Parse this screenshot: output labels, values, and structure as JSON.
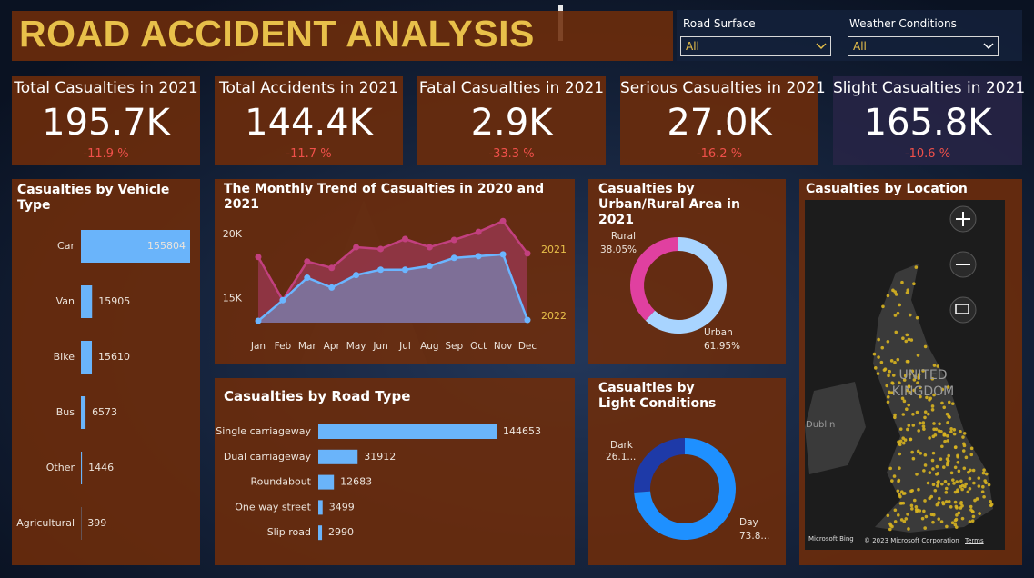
{
  "header": {
    "title": "ROAD ACCIDENT ANALYSIS"
  },
  "filters": [
    {
      "label": "Road Surface",
      "value": "All"
    },
    {
      "label": "Weather Conditions",
      "value": "All"
    }
  ],
  "kpis": [
    {
      "title": "Total Casualties in 2021",
      "value": "195.7K",
      "change": "-11.9 %"
    },
    {
      "title": "Total Accidents in 2021",
      "value": "144.4K",
      "change": "-11.7 %"
    },
    {
      "title": "Fatal Casualties in 2021",
      "value": "2.9K",
      "change": "-33.3 %"
    },
    {
      "title": "Serious Casualties in 2021",
      "value": "27.0K",
      "change": "-16.2 %"
    },
    {
      "title": "Slight Casualties in 2021",
      "value": "165.8K",
      "change": "-10.6 %"
    }
  ],
  "chart_data": [
    {
      "type": "bar",
      "orientation": "horizontal",
      "title": "Casualties by Vehicle Type",
      "color": "#6ab4fa",
      "categories": [
        "Car",
        "Van",
        "Bike",
        "Bus",
        "Other",
        "Agricultural"
      ],
      "values": [
        155804,
        15905,
        15610,
        6573,
        1446,
        399
      ]
    },
    {
      "type": "area",
      "title": "The Monthly Trend of Casualties in 2020 and 2021",
      "categories": [
        "Jan",
        "Feb",
        "Mar",
        "Apr",
        "May",
        "Jun",
        "Jul",
        "Aug",
        "Sep",
        "Oct",
        "Nov",
        "Dec"
      ],
      "series": [
        {
          "name": "2021",
          "color": "#c2407f",
          "values": [
            18240,
            14860,
            17890,
            17390,
            19010,
            18870,
            19650,
            19010,
            19580,
            20210,
            21060,
            18520
          ]
        },
        {
          "name": "2022",
          "color": "#6bb5ff",
          "values": [
            13240,
            14860,
            16620,
            15850,
            16830,
            17250,
            17250,
            17540,
            18170,
            18310,
            18450,
            13310
          ]
        }
      ],
      "ylim": [
        13100,
        22000
      ],
      "yticks": [
        {
          "value": 15000,
          "label": "15K"
        },
        {
          "value": 20000,
          "label": "20K"
        }
      ]
    },
    {
      "type": "bar",
      "orientation": "horizontal",
      "title": "Casualties by Road Type",
      "color": "#6ab4fa",
      "categories": [
        "Single carriageway",
        "Dual carriageway",
        "Roundabout",
        "One way street",
        "Slip road"
      ],
      "values": [
        144653,
        31912,
        12683,
        3499,
        2990
      ]
    },
    {
      "type": "donut",
      "title": "Casualties by Urban/Rural Area in 2021",
      "categories": [
        "Rural",
        "Urban"
      ],
      "values": [
        38.05,
        61.95
      ],
      "value_labels": [
        "38.05%",
        "61.95%"
      ],
      "colors": [
        "#e040a0",
        "#a8d4ff"
      ]
    },
    {
      "type": "donut",
      "title": "Casualties by Light Conditions",
      "categories": [
        "Dark",
        "Day"
      ],
      "values": [
        26.1,
        73.8
      ],
      "value_labels": [
        "26.1...",
        "73.8..."
      ],
      "colors": [
        "#1e3aa8",
        "#1e90ff"
      ]
    }
  ],
  "map": {
    "title": "Casualties by Location",
    "country": "UNITED KINGDOM",
    "city": "Dublin",
    "brand": "Microsoft Bing",
    "copyright": "© 2023 Microsoft Corporation",
    "terms": "Terms"
  }
}
